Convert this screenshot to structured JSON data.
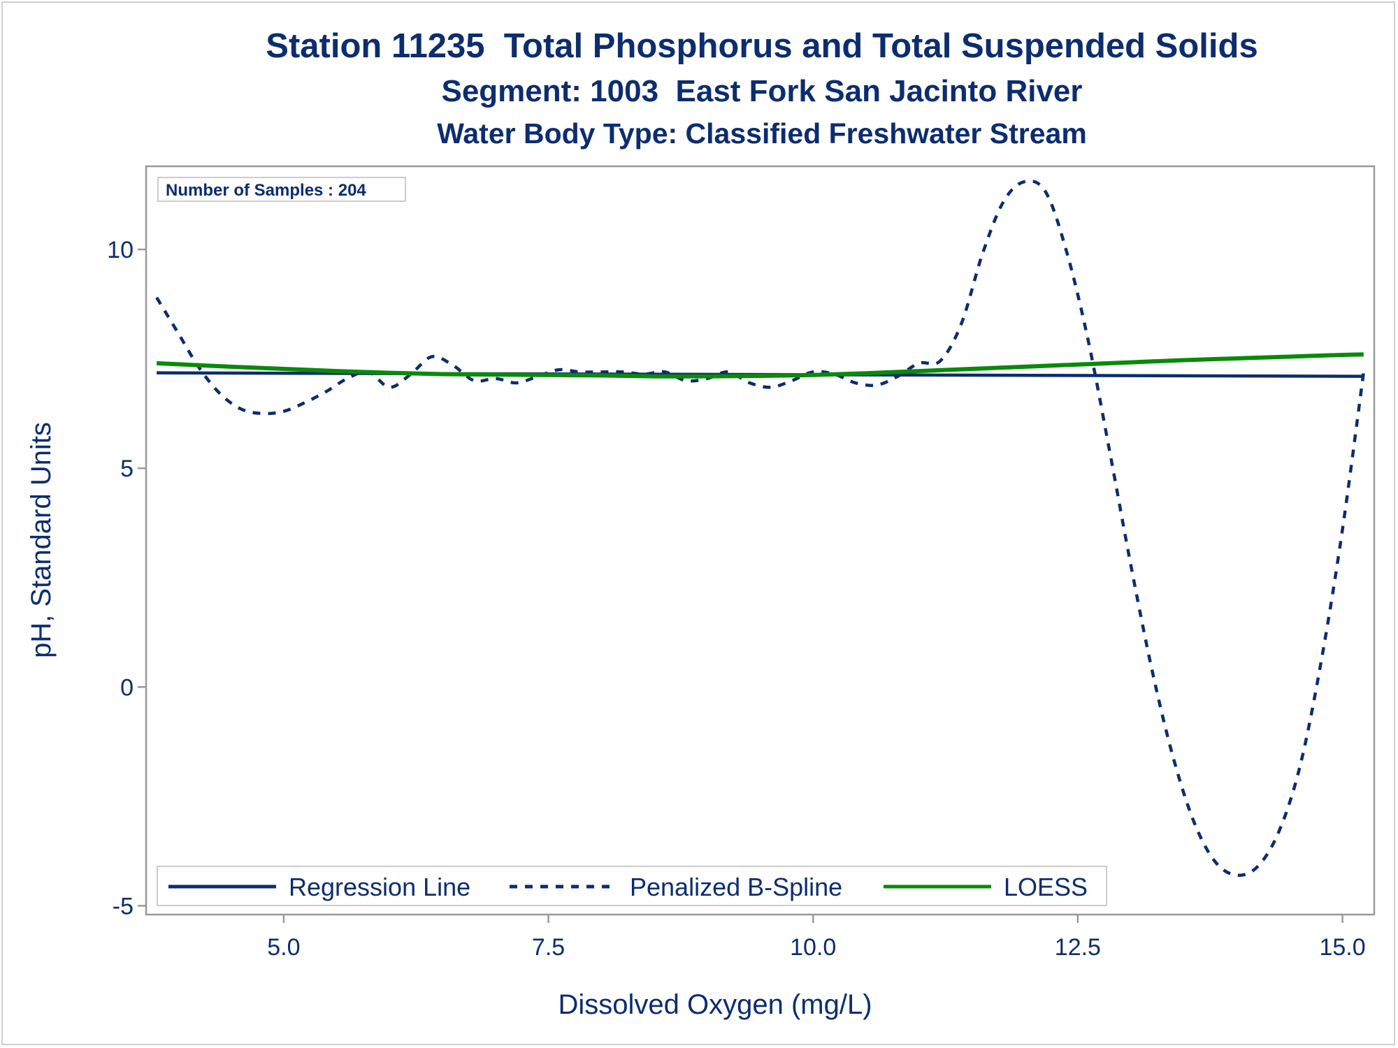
{
  "titles": {
    "line1": "Station 11235  Total Phosphorus and Total Suspended Solids",
    "line2": "Segment: 1003  East Fork San Jacinto River",
    "line3": "Water Body Type: Classified Freshwater Stream"
  },
  "inset": {
    "label": "Number of Samples : 204"
  },
  "colors": {
    "text": "#0c2d6e",
    "regression": "#0c2d6e",
    "spline": "#0c2d6e",
    "loess": "#0a8a0a",
    "frame": "#999999"
  },
  "chart_data": {
    "type": "line",
    "xlabel": "Dissolved Oxygen (mg/L)",
    "ylabel": "pH, Standard Units",
    "xlim": [
      3.7,
      15.3
    ],
    "ylim": [
      -5.2,
      11.9
    ],
    "xticks": [
      5.0,
      7.5,
      10.0,
      12.5,
      15.0
    ],
    "xtick_labels": [
      "5.0",
      "7.5",
      "10.0",
      "12.5",
      "15.0"
    ],
    "yticks": [
      -5,
      0,
      5,
      10
    ],
    "ytick_labels": [
      "-5",
      "0",
      "5",
      "10"
    ],
    "grid": false,
    "legend_position": "bottom-inside",
    "series": [
      {
        "name": "Regression Line",
        "style": "solid",
        "x": [
          3.8,
          15.2
        ],
        "y": [
          7.18,
          7.1
        ]
      },
      {
        "name": "Penalized B-Spline",
        "style": "dashed",
        "x": [
          3.8,
          4.0,
          4.2,
          4.4,
          4.6,
          4.8,
          5.0,
          5.2,
          5.4,
          5.6,
          5.8,
          6.0,
          6.2,
          6.4,
          6.6,
          6.8,
          7.0,
          7.2,
          7.4,
          7.6,
          7.8,
          8.0,
          8.2,
          8.4,
          8.6,
          8.8,
          9.0,
          9.2,
          9.4,
          9.6,
          9.8,
          10.0,
          10.2,
          10.4,
          10.6,
          10.8,
          11.0,
          11.2,
          11.4,
          11.6,
          11.8,
          12.0,
          12.2,
          12.4,
          12.6,
          12.8,
          13.0,
          13.2,
          13.4,
          13.6,
          13.8,
          14.0,
          14.2,
          14.4,
          14.6,
          14.8,
          15.0,
          15.2
        ],
        "y": [
          8.9,
          8.1,
          7.3,
          6.7,
          6.35,
          6.25,
          6.3,
          6.5,
          6.75,
          7.05,
          7.2,
          6.85,
          7.15,
          7.55,
          7.35,
          7.0,
          7.05,
          6.95,
          7.1,
          7.25,
          7.2,
          7.2,
          7.2,
          7.15,
          7.2,
          7.0,
          7.05,
          7.2,
          6.95,
          6.85,
          7.0,
          7.2,
          7.15,
          6.95,
          6.9,
          7.1,
          7.4,
          7.45,
          8.3,
          9.9,
          11.1,
          11.55,
          11.3,
          9.9,
          7.9,
          5.4,
          2.8,
          0.4,
          -1.6,
          -3.1,
          -4.0,
          -4.3,
          -4.1,
          -3.3,
          -1.8,
          0.6,
          3.6,
          7.2
        ]
      },
      {
        "name": "LOESS",
        "style": "solid",
        "x": [
          3.8,
          4.5,
          5.0,
          5.5,
          6.0,
          6.5,
          7.0,
          7.5,
          8.0,
          8.5,
          9.0,
          9.5,
          10.0,
          10.5,
          11.0,
          11.5,
          12.0,
          12.5,
          13.0,
          13.5,
          14.0,
          14.5,
          15.0,
          15.2
        ],
        "y": [
          7.4,
          7.32,
          7.27,
          7.22,
          7.18,
          7.15,
          7.14,
          7.13,
          7.12,
          7.1,
          7.1,
          7.11,
          7.13,
          7.17,
          7.22,
          7.27,
          7.32,
          7.37,
          7.42,
          7.47,
          7.51,
          7.55,
          7.59,
          7.6
        ]
      }
    ]
  }
}
